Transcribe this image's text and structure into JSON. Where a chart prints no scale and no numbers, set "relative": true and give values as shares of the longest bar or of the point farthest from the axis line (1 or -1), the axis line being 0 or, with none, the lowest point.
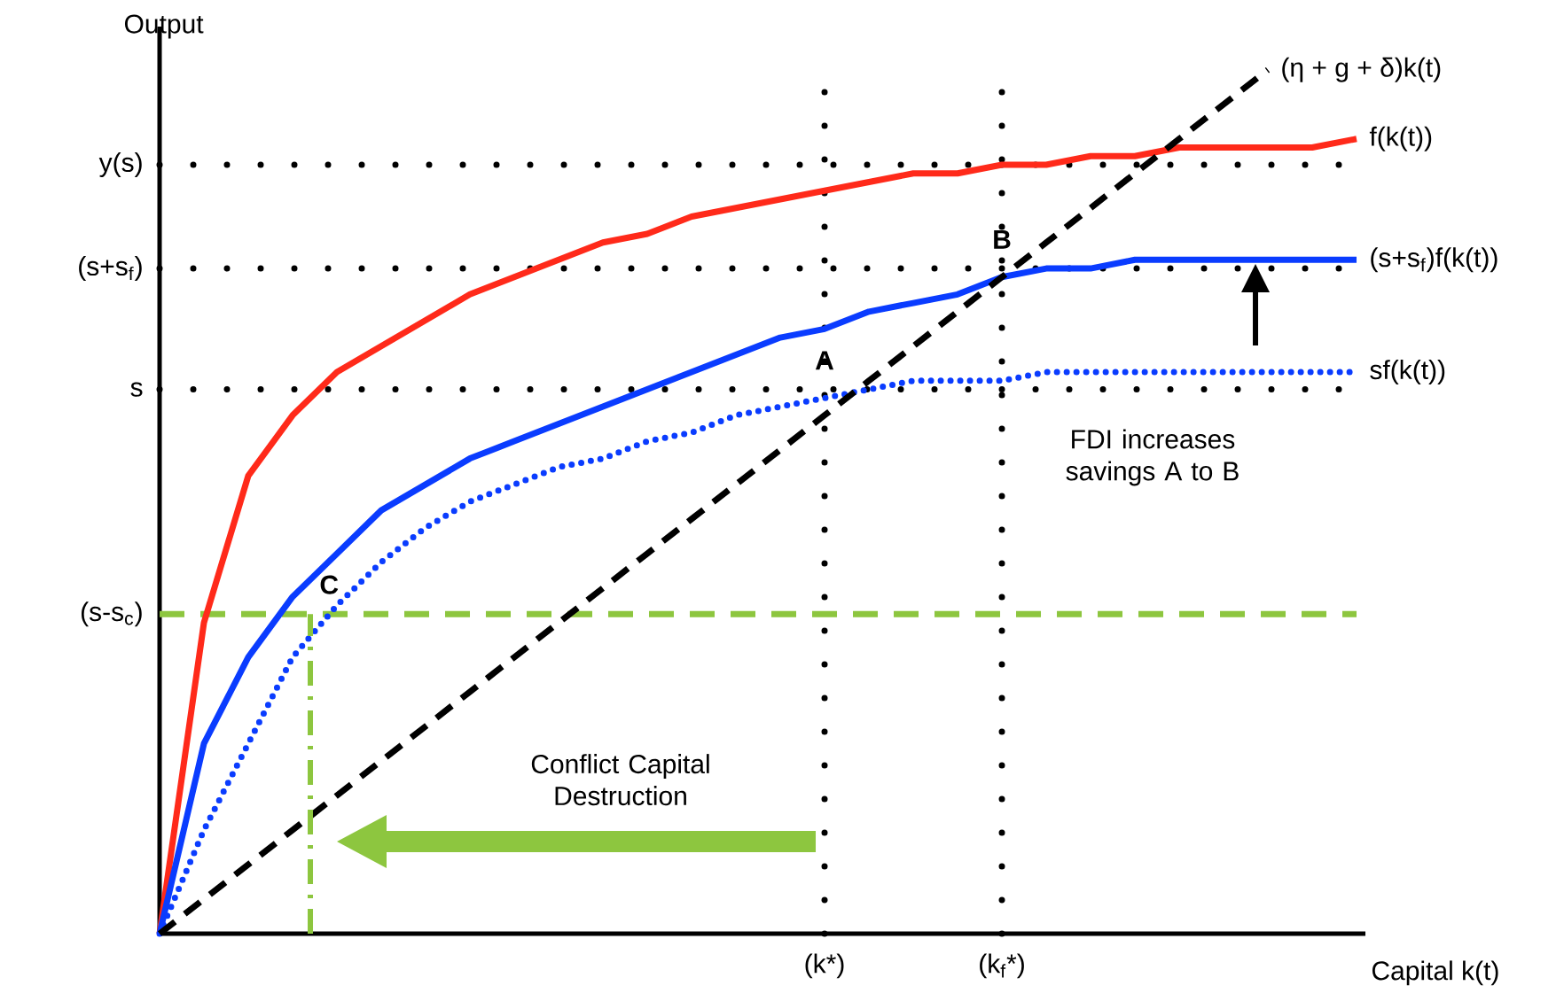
{
  "chart_data": {
    "type": "line",
    "relative": true,
    "xlabel": "Capital k(t)",
    "ylabel": "Output",
    "categories": [
      null,
      null,
      null,
      null,
      null,
      null,
      null,
      null,
      null,
      null,
      null,
      null,
      null,
      null,
      null,
      "(k*)",
      null,
      null,
      null,
      "(k$_{f}$*)",
      null,
      null,
      null,
      null,
      null,
      null,
      null,
      null
    ],
    "series": [
      {
        "name": "f(k(t))",
        "color": "#ff2a1a",
        "line_style": "solid",
        "values": [
          0,
          0.36,
          0.53,
          0.6,
          0.65,
          0.68,
          0.71,
          0.74,
          0.76,
          0.78,
          0.8,
          0.81,
          0.83,
          0.84,
          0.85,
          0.86,
          0.87,
          0.88,
          0.88,
          0.89,
          0.89,
          0.9,
          0.9,
          0.91,
          0.91,
          0.91,
          0.91,
          0.92
        ]
      },
      {
        "name": "(s+s$_{f}$)f(k(t))",
        "color": "#0a3cff",
        "line_style": "solid",
        "values": [
          0,
          0.22,
          0.32,
          0.39,
          0.44,
          0.49,
          0.52,
          0.55,
          0.57,
          0.59,
          0.61,
          0.63,
          0.65,
          0.67,
          0.69,
          0.7,
          0.72,
          0.73,
          0.74,
          0.76,
          0.77,
          0.77,
          0.78,
          0.78,
          0.78,
          0.78,
          0.78,
          0.78
        ]
      },
      {
        "name": "sf(k(t))",
        "color": "#0a3cff",
        "line_style": "dotted",
        "values": [
          0,
          0.12,
          0.22,
          0.32,
          0.38,
          0.43,
          0.47,
          0.5,
          0.52,
          0.54,
          0.55,
          0.57,
          0.58,
          0.6,
          0.61,
          0.62,
          0.63,
          0.64,
          0.64,
          0.64,
          0.65,
          0.65,
          0.65,
          0.65,
          0.65,
          0.65,
          0.65,
          0.65
        ]
      },
      {
        "name": "(η + g + δ)k(t)",
        "color": "#000000",
        "line_style": "dashed",
        "values": [
          0,
          0.04,
          0.08,
          0.12,
          0.16,
          0.2,
          0.24,
          0.28,
          0.32,
          0.36,
          0.4,
          0.44,
          0.48,
          0.52,
          0.56,
          0.6,
          0.64,
          0.68,
          0.72,
          0.76,
          0.8,
          0.84,
          0.88,
          0.92,
          0.96,
          1.0,
          null,
          null
        ]
      }
    ],
    "ref_lines": [
      {
        "axis": "y",
        "value": 0.89,
        "label": "y(s)",
        "color": "#000000",
        "line_style": "dotted"
      },
      {
        "axis": "y",
        "value": 0.77,
        "label": "(s+s$_{f}$)",
        "color": "#000000",
        "line_style": "dotted"
      },
      {
        "axis": "y",
        "value": 0.63,
        "label": "s",
        "color": "#000000",
        "line_style": "dotted"
      },
      {
        "axis": "y",
        "value": 0.37,
        "label": "(s-s$_{c}$)",
        "color": "#8dc63f",
        "line_style": "dashed"
      },
      {
        "axis": "x",
        "value": "(k*)",
        "color": "#000000",
        "line_style": "dotted"
      },
      {
        "axis": "x",
        "value": "(k$_{f}$*)",
        "color": "#000000",
        "line_style": "dotted"
      }
    ],
    "annotations": [
      {
        "text": "A",
        "x": "(k*)",
        "y": 0.63
      },
      {
        "text": "B",
        "x": "(k$_{f}$*)",
        "y": 0.77
      },
      {
        "text": "C",
        "y": 0.37
      },
      "FDI increases savings A to B",
      "Conflict Capital Destruction"
    ]
  }
}
